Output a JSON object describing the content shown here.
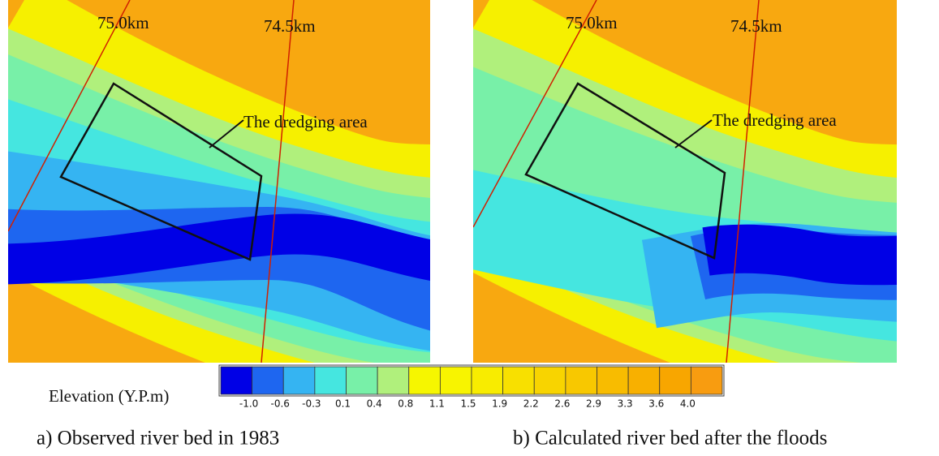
{
  "panels": [
    {
      "caption": "a) Observed river bed in 1983",
      "section_labels": [
        "75.0km",
        "74.5km"
      ],
      "annotation": "The dredging area"
    },
    {
      "caption": "b) Calculated river bed after the floods",
      "section_labels": [
        "75.0km",
        "74.5km"
      ],
      "annotation": "The dredging area"
    }
  ],
  "colorbar": {
    "label": "Elevation (Y.P.m)",
    "ticks": [
      "-1.0",
      "-0.6",
      "-0.3",
      "0.1",
      "0.4",
      "0.8",
      "1.1",
      "1.5",
      "1.9",
      "2.2",
      "2.6",
      "2.9",
      "3.3",
      "3.6",
      "4.0"
    ],
    "colors": [
      "#0000e6",
      "#1e66f0",
      "#35b4f2",
      "#45e6e0",
      "#78f0a8",
      "#b0f07c",
      "#f6f600",
      "#f8f400",
      "#f8ec00",
      "#f8e000",
      "#f8d400",
      "#f8c800",
      "#f8bc00",
      "#f8b000",
      "#f8a600",
      "#f89c10"
    ]
  }
}
